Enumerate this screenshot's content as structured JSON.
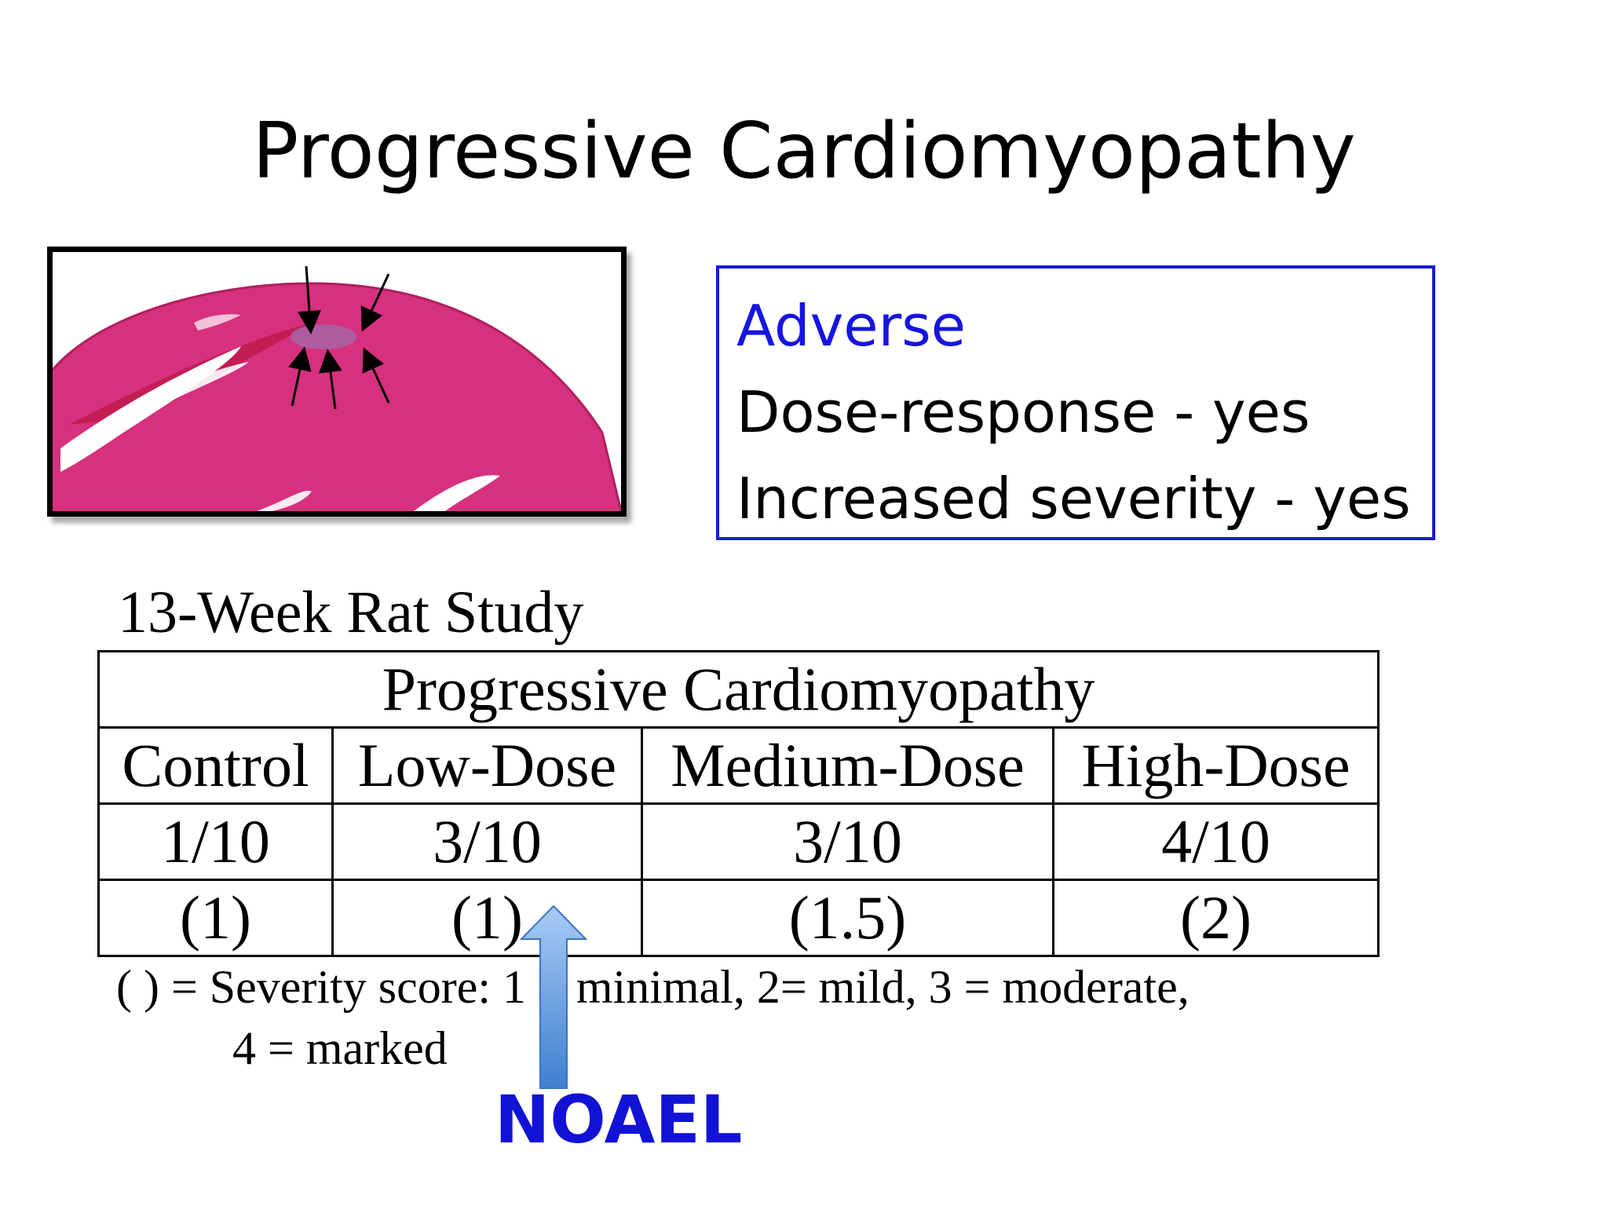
{
  "slide": {
    "title": "Progressive Cardiomyopathy"
  },
  "histology_image": {
    "description_icon": "heart-tissue-histology-image",
    "arrow_count": 5,
    "tissue_color": "#d6307e"
  },
  "findings": {
    "adverse": "Adverse",
    "dose_response": "Dose-response - yes",
    "increased_severity": "Increased severity - yes",
    "border_color": "#1a1ad8",
    "adverse_color": "#1515e0"
  },
  "study": {
    "title": "13-Week Rat Study",
    "table_header": "Progressive Cardiomyopathy",
    "columns": [
      "Control",
      "Low-Dose",
      "Medium-Dose",
      "High-Dose"
    ],
    "incidence": [
      "1/10",
      "3/10",
      "3/10",
      "4/10"
    ],
    "severity": [
      "(1)",
      "(1)",
      "(1.5)",
      "(2)"
    ]
  },
  "footnote": {
    "line1": "( ) = Severity score: 1 = minimal, 2= mild, 3 = moderate,",
    "line2": "4 = marked"
  },
  "noael": {
    "label": "NOAEL",
    "color": "#1212d6",
    "arrow_color_top": "#a9cbf5",
    "arrow_color_bottom": "#3f7fcf"
  }
}
